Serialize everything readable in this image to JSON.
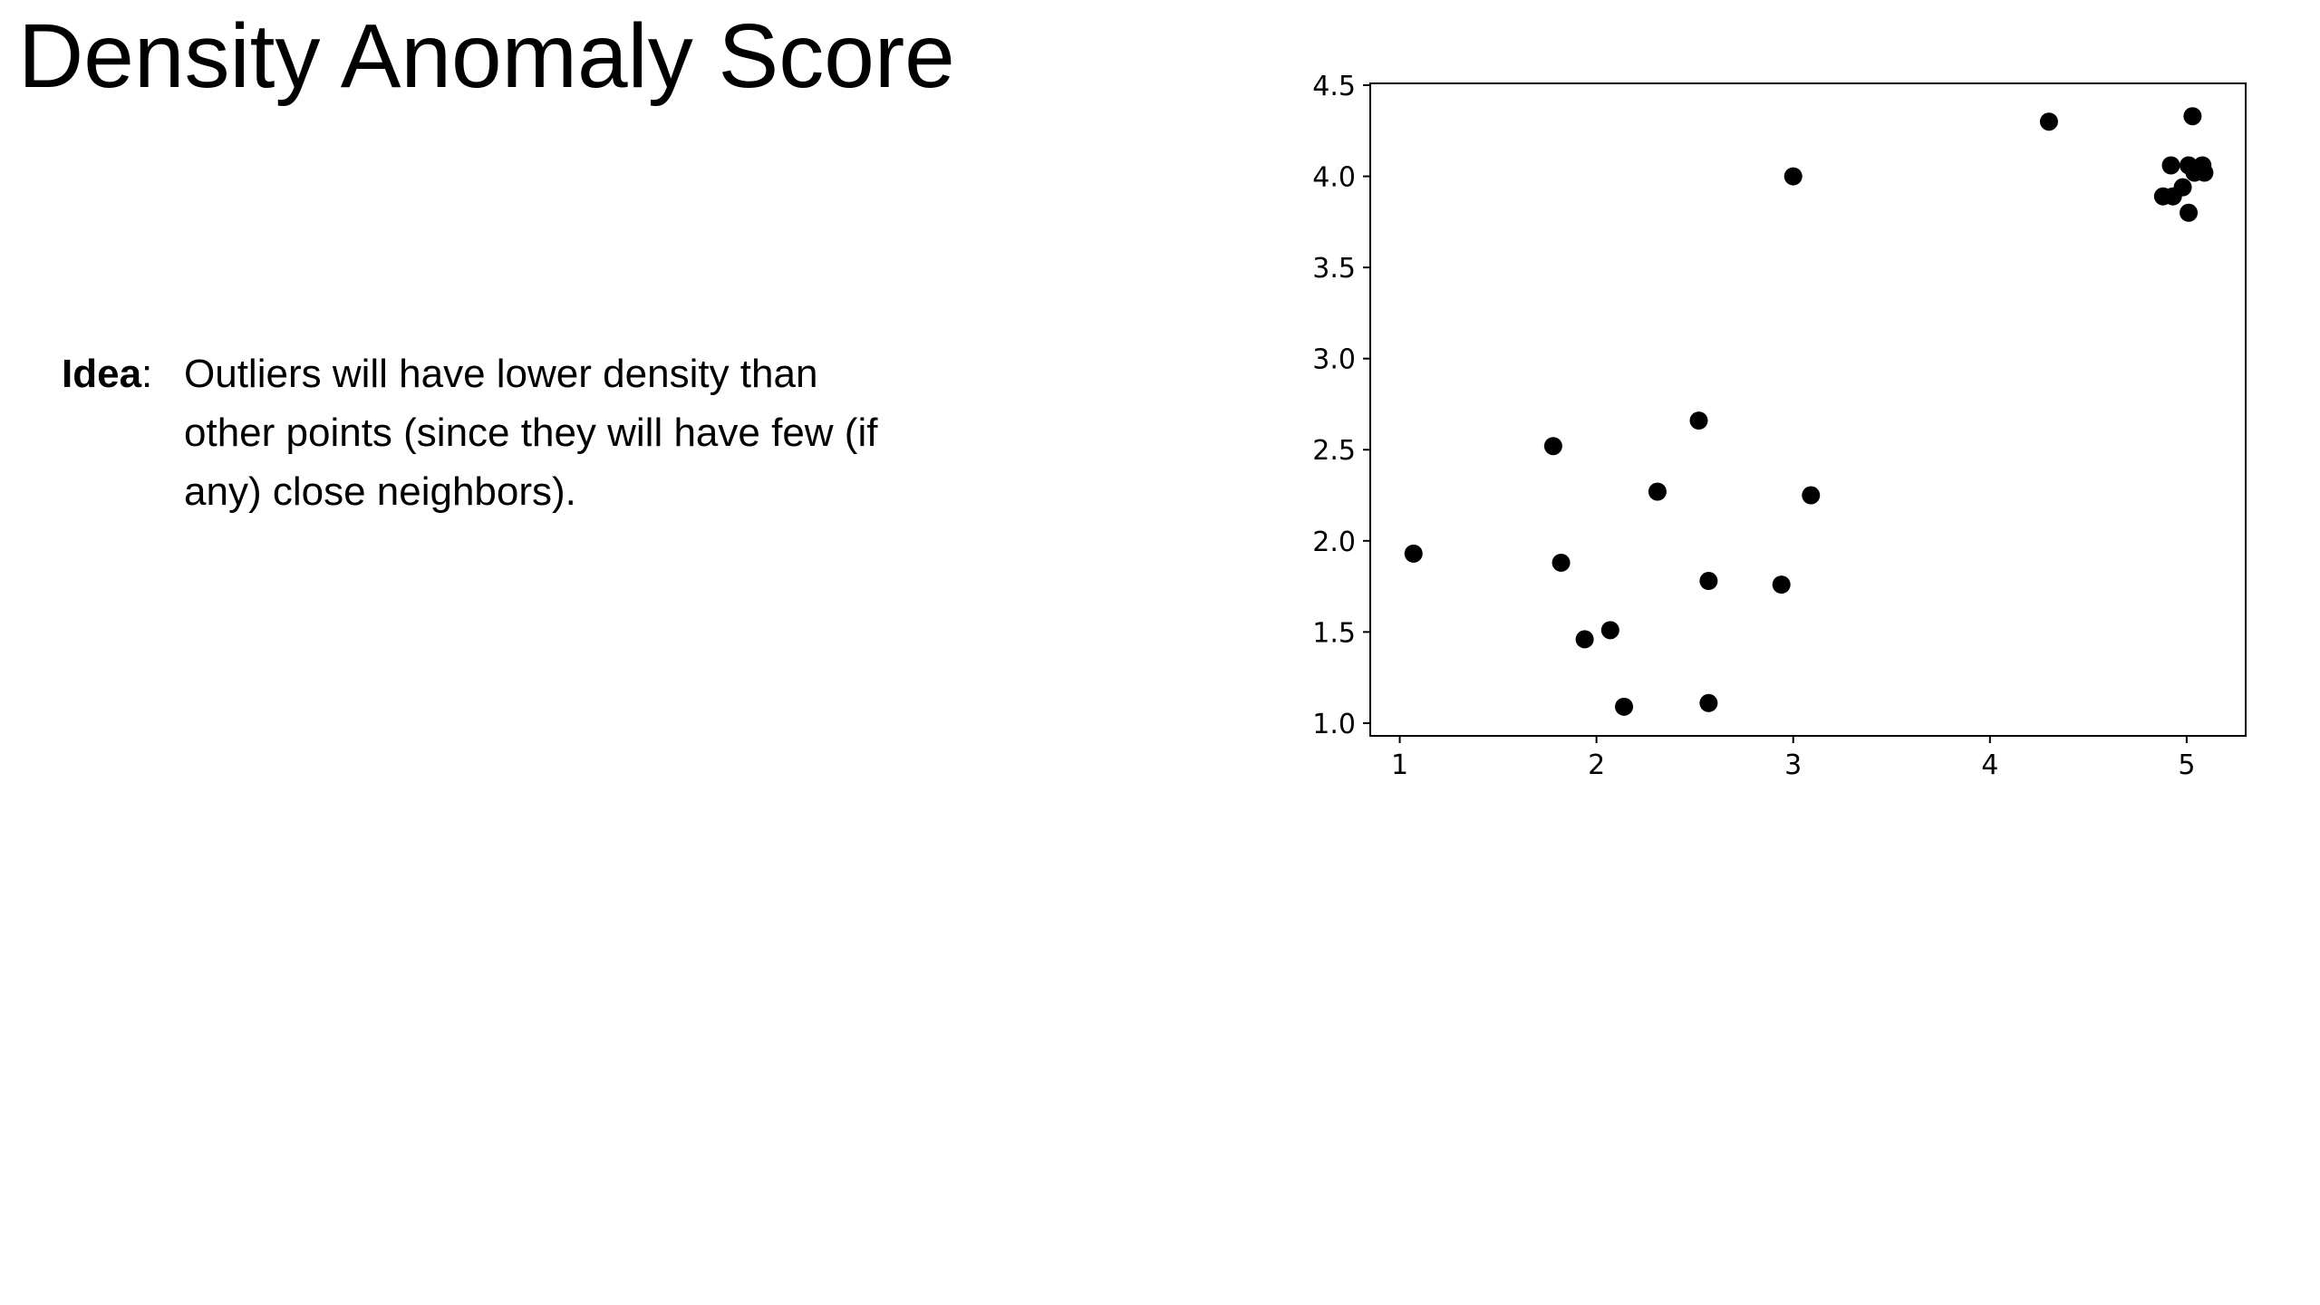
{
  "slide": {
    "title": "Density Anomaly Score",
    "idea_label": "Idea",
    "idea_colon": ":",
    "idea_lines": [
      "Outliers will have lower density than",
      "other points (since they will have few (if",
      "any) close neighbors)."
    ]
  },
  "chart_data": {
    "type": "scatter",
    "title": "",
    "xlabel": "",
    "ylabel": "",
    "xlim": [
      0.85,
      5.3
    ],
    "ylim": [
      0.93,
      4.51
    ],
    "xticks": [
      1,
      2,
      3,
      4,
      5
    ],
    "xtick_labels": [
      "1",
      "2",
      "3",
      "4",
      "5"
    ],
    "yticks": [
      1.0,
      1.5,
      2.0,
      2.5,
      3.0,
      3.5,
      4.0,
      4.5
    ],
    "ytick_labels": [
      "1.0",
      "1.5",
      "2.0",
      "2.5",
      "3.0",
      "3.5",
      "4.0",
      "4.5"
    ],
    "grid": false,
    "marker_color": "#000000",
    "points": [
      {
        "x": 1.07,
        "y": 1.93
      },
      {
        "x": 1.78,
        "y": 2.52
      },
      {
        "x": 1.82,
        "y": 1.88
      },
      {
        "x": 1.94,
        "y": 1.46
      },
      {
        "x": 2.07,
        "y": 1.51
      },
      {
        "x": 2.14,
        "y": 1.09
      },
      {
        "x": 2.31,
        "y": 2.27
      },
      {
        "x": 2.52,
        "y": 2.66
      },
      {
        "x": 2.57,
        "y": 1.78
      },
      {
        "x": 2.57,
        "y": 1.11
      },
      {
        "x": 2.94,
        "y": 1.76
      },
      {
        "x": 3.0,
        "y": 4.0
      },
      {
        "x": 3.09,
        "y": 2.25
      },
      {
        "x": 4.3,
        "y": 4.3
      },
      {
        "x": 4.88,
        "y": 3.89
      },
      {
        "x": 4.93,
        "y": 3.89
      },
      {
        "x": 4.92,
        "y": 4.06
      },
      {
        "x": 4.98,
        "y": 3.94
      },
      {
        "x": 5.01,
        "y": 3.8
      },
      {
        "x": 5.01,
        "y": 4.06
      },
      {
        "x": 5.03,
        "y": 4.33
      },
      {
        "x": 5.04,
        "y": 4.02
      },
      {
        "x": 5.08,
        "y": 4.06
      },
      {
        "x": 5.09,
        "y": 4.02
      }
    ]
  }
}
